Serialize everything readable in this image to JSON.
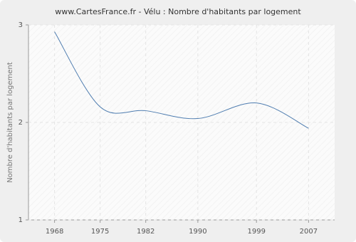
{
  "chart_data": {
    "type": "line",
    "title": "www.CartesFrance.fr - Vélu : Nombre d'habitants par logement",
    "y_label": "Nombre d'habitants par logement",
    "x": [
      1968,
      1975,
      1982,
      1990,
      1999,
      2007
    ],
    "series": [
      {
        "name": "Nombre d'habitants par logement",
        "color": "#4f7db0",
        "values": [
          2.93,
          2.16,
          2.12,
          2.04,
          2.2,
          1.94
        ]
      }
    ],
    "xlim": [
      1964,
      2011
    ],
    "xticks": [
      1968,
      1975,
      1982,
      1990,
      1999,
      2007
    ],
    "ylim": [
      1,
      3
    ],
    "yticks": [
      1,
      2,
      3
    ],
    "grid": true
  }
}
